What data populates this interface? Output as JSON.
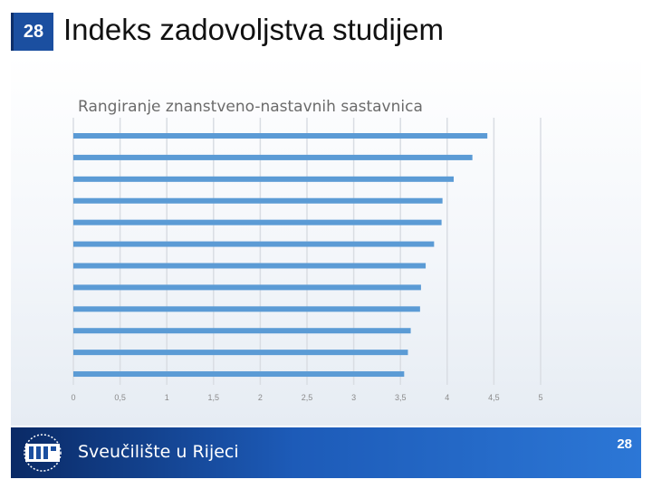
{
  "slide": {
    "number": "28",
    "title": "Indeks zadovoljstva studijem"
  },
  "chart_data": {
    "type": "bar",
    "orientation": "horizontal",
    "title": "Rangiranje znanstveno-nastavnih sastavnica",
    "categories": [
      "",
      "",
      "",
      "",
      "",
      "",
      "",
      "",
      "",
      "",
      "",
      ""
    ],
    "values": [
      4.43,
      4.27,
      4.07,
      3.95,
      3.94,
      3.86,
      3.77,
      3.72,
      3.71,
      3.61,
      3.58,
      3.54
    ],
    "xlim": [
      0,
      5
    ],
    "xticks": [
      "0",
      "0,5",
      "1",
      "1,5",
      "2",
      "2,5",
      "3",
      "3,5",
      "4",
      "4,5",
      "5"
    ],
    "grid": true,
    "color": "#5b9bd5"
  },
  "footer": {
    "university": "Sveučilište u Rijeci",
    "page_number": "28",
    "background_color": "#1d5bb8"
  }
}
